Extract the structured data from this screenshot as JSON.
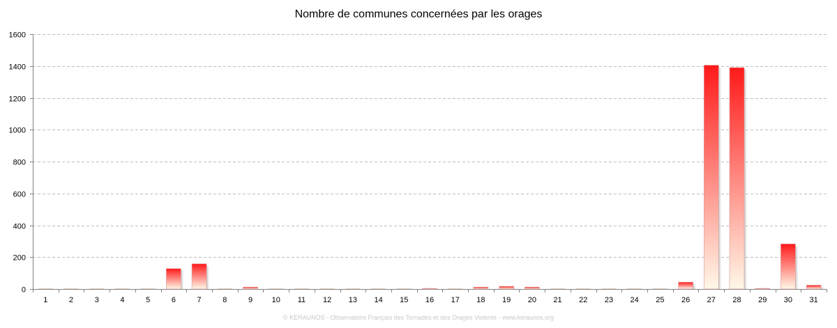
{
  "chart_data": {
    "type": "bar",
    "title": "Nombre de communes concernées par les orages",
    "xlabel": "",
    "ylabel": "",
    "ylim": [
      0,
      1600
    ],
    "yticks": [
      0,
      200,
      400,
      600,
      800,
      1000,
      1200,
      1400,
      1600
    ],
    "grid": true,
    "legend": "none",
    "categories": [
      "1",
      "2",
      "3",
      "4",
      "5",
      "6",
      "7",
      "8",
      "9",
      "10",
      "11",
      "12",
      "13",
      "14",
      "15",
      "16",
      "17",
      "18",
      "19",
      "20",
      "21",
      "22",
      "23",
      "24",
      "25",
      "26",
      "27",
      "28",
      "29",
      "30",
      "31"
    ],
    "values": [
      0,
      0,
      0,
      0,
      0,
      128,
      158,
      0,
      12,
      0,
      0,
      0,
      0,
      0,
      0,
      4,
      0,
      12,
      17,
      12,
      0,
      0,
      0,
      0,
      0,
      43,
      1405,
      1390,
      4,
      283,
      24
    ],
    "bar_color_top": "#ff1a1a",
    "bar_color_bottom": "#fff8e8"
  },
  "credit": "© KERAUNOS - Observatoire Français des Tornades et des Orages Violents - www.keraunos.org"
}
